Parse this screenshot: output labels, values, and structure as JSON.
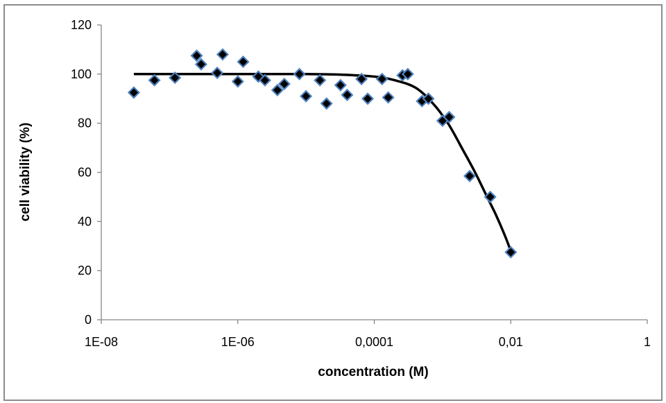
{
  "chart_data": {
    "type": "scatter",
    "title": "",
    "xlabel": "concentration (M)",
    "ylabel": "cell viability (%)",
    "x_scale": "log",
    "xlim": [
      1e-08,
      1
    ],
    "ylim": [
      0,
      120
    ],
    "x_ticks": [
      {
        "value": 1e-08,
        "label": "1E-08"
      },
      {
        "value": 1e-06,
        "label": "1E-06"
      },
      {
        "value": 0.0001,
        "label": "0,0001"
      },
      {
        "value": 0.01,
        "label": "0,01"
      },
      {
        "value": 1,
        "label": "1"
      }
    ],
    "y_ticks": [
      0,
      20,
      40,
      60,
      80,
      100,
      120
    ],
    "grid": false,
    "legend": "none",
    "series": [
      {
        "marker": "diamond",
        "marker_fill": "#000000",
        "marker_edge": "#4f81bd",
        "points": [
          {
            "x": 3e-08,
            "y": 92.5
          },
          {
            "x": 6e-08,
            "y": 97.5
          },
          {
            "x": 1.2e-07,
            "y": 98.5
          },
          {
            "x": 2.5e-07,
            "y": 107.5
          },
          {
            "x": 2.9e-07,
            "y": 104
          },
          {
            "x": 5e-07,
            "y": 100.5
          },
          {
            "x": 6e-07,
            "y": 108
          },
          {
            "x": 1e-06,
            "y": 97
          },
          {
            "x": 1.2e-06,
            "y": 105
          },
          {
            "x": 2e-06,
            "y": 99
          },
          {
            "x": 2.5e-06,
            "y": 97.5
          },
          {
            "x": 3.8e-06,
            "y": 93.5
          },
          {
            "x": 4.8e-06,
            "y": 96
          },
          {
            "x": 8e-06,
            "y": 100
          },
          {
            "x": 1e-05,
            "y": 91
          },
          {
            "x": 1.6e-05,
            "y": 97.5
          },
          {
            "x": 2e-05,
            "y": 88
          },
          {
            "x": 3.2e-05,
            "y": 95.5
          },
          {
            "x": 4e-05,
            "y": 91.5
          },
          {
            "x": 6.5e-05,
            "y": 98
          },
          {
            "x": 8e-05,
            "y": 90
          },
          {
            "x": 0.00013,
            "y": 98
          },
          {
            "x": 0.00016,
            "y": 90.5
          },
          {
            "x": 0.00026,
            "y": 99.5
          },
          {
            "x": 0.00031,
            "y": 100
          },
          {
            "x": 0.0005,
            "y": 89
          },
          {
            "x": 0.00062,
            "y": 90
          },
          {
            "x": 0.001,
            "y": 81
          },
          {
            "x": 0.00125,
            "y": 82.5
          },
          {
            "x": 0.0025,
            "y": 58.5
          },
          {
            "x": 0.005,
            "y": 50
          },
          {
            "x": 0.01,
            "y": 27.5
          }
        ]
      }
    ],
    "fit_curve": {
      "stroke": "#000000",
      "points": [
        {
          "x": 3e-08,
          "y": 100
        },
        {
          "x": 1e-06,
          "y": 100
        },
        {
          "x": 1e-05,
          "y": 100
        },
        {
          "x": 3e-05,
          "y": 99.8
        },
        {
          "x": 0.0001,
          "y": 99
        },
        {
          "x": 0.0002,
          "y": 97.5
        },
        {
          "x": 0.0004,
          "y": 94.5
        },
        {
          "x": 0.0007,
          "y": 88.5
        },
        {
          "x": 0.0012,
          "y": 80
        },
        {
          "x": 0.002,
          "y": 69
        },
        {
          "x": 0.003,
          "y": 60
        },
        {
          "x": 0.0045,
          "y": 50
        },
        {
          "x": 0.006,
          "y": 43
        },
        {
          "x": 0.008,
          "y": 35
        },
        {
          "x": 0.01,
          "y": 28
        }
      ]
    }
  }
}
